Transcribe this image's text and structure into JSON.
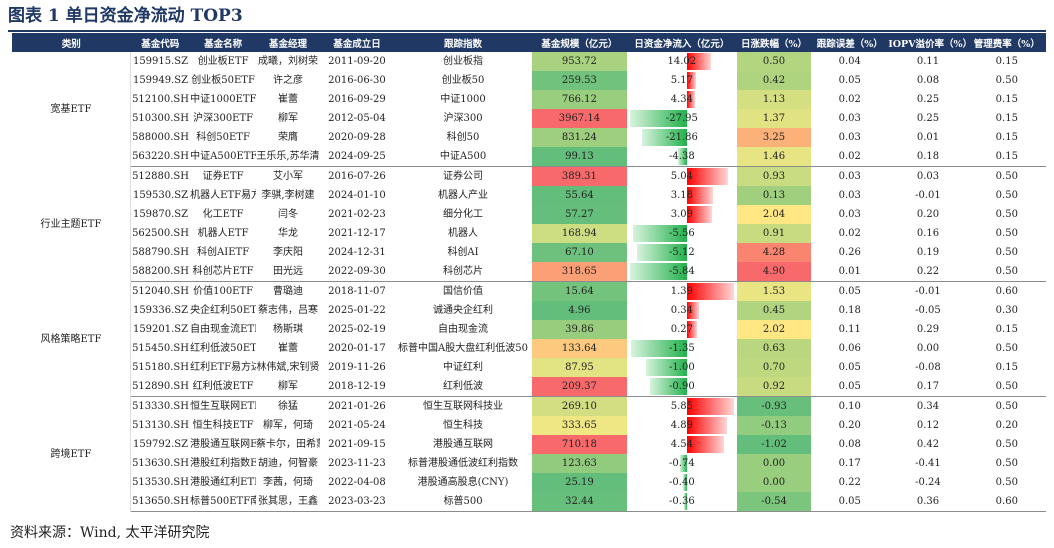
{
  "title": "图表 1  单日资金净流动 TOP3",
  "source": "资料来源：Wind, 太平洋研究院",
  "headers": [
    "类别",
    "基金代码",
    "基金名称",
    "基金经理",
    "基金成立日",
    "跟踪指数",
    "基金规模（亿元）",
    "日资金净流入（亿元）",
    "日涨跌幅（%）",
    "跟踪误差（%）",
    "IOPV溢价率（%）",
    "管理费率（%）"
  ],
  "groups": [
    {
      "category": "宽基ETF",
      "rows": [
        {
          "code": "159915.SZ",
          "name": "创业板ETF",
          "manager": "成曦，刘树荣",
          "date": "2011-09-20",
          "index": "创业板指",
          "scale": "953.72",
          "flow": "14.02",
          "chg": "0.50",
          "te": "0.04",
          "iopv": "0.11",
          "fee": "0.15"
        },
        {
          "code": "159949.SZ",
          "name": "创业板50ETF",
          "manager": "许之彦",
          "date": "2016-06-30",
          "index": "创业板50",
          "scale": "259.53",
          "flow": "5.17",
          "chg": "0.42",
          "te": "0.05",
          "iopv": "0.08",
          "fee": "0.50"
        },
        {
          "code": "512100.SH",
          "name": "中证1000ETF",
          "manager": "崔蕾",
          "date": "2016-09-29",
          "index": "中证1000",
          "scale": "766.12",
          "flow": "4.34",
          "chg": "1.13",
          "te": "0.02",
          "iopv": "0.25",
          "fee": "0.15"
        },
        {
          "code": "510300.SH",
          "name": "沪深300ETF",
          "manager": "柳军",
          "date": "2012-05-04",
          "index": "沪深300",
          "scale": "3967.14",
          "flow": "-27.95",
          "chg": "1.37",
          "te": "0.03",
          "iopv": "0.25",
          "fee": "0.15"
        },
        {
          "code": "588000.SH",
          "name": "科创50ETF",
          "manager": "荣膺",
          "date": "2020-09-28",
          "index": "科创50",
          "scale": "831.24",
          "flow": "-21.86",
          "chg": "3.25",
          "te": "0.03",
          "iopv": "0.01",
          "fee": "0.15"
        },
        {
          "code": "563220.SH",
          "name": "中证A500ETF富国",
          "manager": "王乐乐,苏华清",
          "date": "2024-09-25",
          "index": "中证A500",
          "scale": "99.13",
          "flow": "-4.38",
          "chg": "1.46",
          "te": "0.02",
          "iopv": "0.18",
          "fee": "0.15"
        }
      ]
    },
    {
      "category": "行业主题ETF",
      "rows": [
        {
          "code": "512880.SH",
          "name": "证券ETF",
          "manager": "艾小军",
          "date": "2016-07-26",
          "index": "证券公司",
          "scale": "389.31",
          "flow": "5.04",
          "chg": "0.93",
          "te": "0.03",
          "iopv": "0.03",
          "fee": "0.50"
        },
        {
          "code": "159530.SZ",
          "name": "机器人ETF易方达",
          "manager": "李骐,李树建",
          "date": "2024-01-10",
          "index": "机器人产业",
          "scale": "55.64",
          "flow": "3.18",
          "chg": "0.13",
          "te": "0.03",
          "iopv": "-0.01",
          "fee": "0.50"
        },
        {
          "code": "159870.SZ",
          "name": "化工ETF",
          "manager": "闫冬",
          "date": "2021-02-23",
          "index": "细分化工",
          "scale": "57.27",
          "flow": "3.09",
          "chg": "2.04",
          "te": "0.03",
          "iopv": "0.20",
          "fee": "0.50"
        },
        {
          "code": "562500.SH",
          "name": "机器人ETF",
          "manager": "华龙",
          "date": "2021-12-17",
          "index": "机器人",
          "scale": "168.94",
          "flow": "-5.56",
          "chg": "0.91",
          "te": "0.02",
          "iopv": "0.16",
          "fee": "0.50"
        },
        {
          "code": "588790.SH",
          "name": "科创AIETF",
          "manager": "李庆阳",
          "date": "2024-12-31",
          "index": "科创AI",
          "scale": "67.10",
          "flow": "-5.12",
          "chg": "4.28",
          "te": "0.26",
          "iopv": "0.19",
          "fee": "0.50"
        },
        {
          "code": "588200.SH",
          "name": "科创芯片ETF",
          "manager": "田光远",
          "date": "2022-09-30",
          "index": "科创芯片",
          "scale": "318.65",
          "flow": "-5.84",
          "chg": "4.90",
          "te": "0.01",
          "iopv": "0.22",
          "fee": "0.50"
        }
      ]
    },
    {
      "category": "风格策略ETF",
      "rows": [
        {
          "code": "512040.SH",
          "name": "价值100ETF",
          "manager": "曹璐迪",
          "date": "2018-11-07",
          "index": "国信价值",
          "scale": "15.64",
          "flow": "1.39",
          "chg": "1.53",
          "te": "0.05",
          "iopv": "-0.01",
          "fee": "0.60"
        },
        {
          "code": "159336.SZ",
          "name": "央企红利50ETF",
          "manager": "蔡志伟，吕寒",
          "date": "2025-01-22",
          "index": "诚通央企红利",
          "scale": "4.96",
          "flow": "0.34",
          "chg": "0.45",
          "te": "0.18",
          "iopv": "-0.05",
          "fee": "0.30"
        },
        {
          "code": "159201.SZ",
          "name": "自由现金流ETF",
          "manager": "杨斯琪",
          "date": "2025-02-19",
          "index": "自由现金流",
          "scale": "39.86",
          "flow": "0.27",
          "chg": "2.02",
          "te": "0.11",
          "iopv": "0.29",
          "fee": "0.15"
        },
        {
          "code": "515450.SH",
          "name": "红利低波50ETF",
          "manager": "崔蕾",
          "date": "2020-01-17",
          "index": "标普中国A股大盘红利低波50",
          "scale": "133.64",
          "flow": "-1.35",
          "chg": "0.63",
          "te": "0.06",
          "iopv": "0.00",
          "fee": "0.50"
        },
        {
          "code": "515180.SH",
          "name": "红利ETF易方达",
          "manager": "林伟斌,宋钊贤",
          "date": "2019-11-26",
          "index": "中证红利",
          "scale": "87.95",
          "flow": "-1.00",
          "chg": "0.70",
          "te": "0.05",
          "iopv": "-0.08",
          "fee": "0.15"
        },
        {
          "code": "512890.SH",
          "name": "红利低波ETF",
          "manager": "柳军",
          "date": "2018-12-19",
          "index": "红利低波",
          "scale": "209.37",
          "flow": "-0.90",
          "chg": "0.92",
          "te": "0.05",
          "iopv": "0.17",
          "fee": "0.50"
        }
      ]
    },
    {
      "category": "跨境ETF",
      "rows": [
        {
          "code": "513330.SH",
          "name": "恒生互联网ETF",
          "manager": "徐猛",
          "date": "2021-01-26",
          "index": "恒生互联网科技业",
          "scale": "269.10",
          "flow": "5.85",
          "chg": "-0.93",
          "te": "0.10",
          "iopv": "0.34",
          "fee": "0.50"
        },
        {
          "code": "513130.SH",
          "name": "恒生科技ETF",
          "manager": "柳军，何琦",
          "date": "2021-05-24",
          "index": "恒生科技",
          "scale": "333.65",
          "flow": "4.89",
          "chg": "-0.13",
          "te": "0.20",
          "iopv": "0.12",
          "fee": "0.20"
        },
        {
          "code": "159792.SZ",
          "name": "港股通互联网ETF",
          "manager": "蔡卡尔，田希蒙",
          "date": "2021-09-15",
          "index": "港股通互联网",
          "scale": "710.18",
          "flow": "4.54",
          "chg": "-1.02",
          "te": "0.08",
          "iopv": "0.42",
          "fee": "0.50"
        },
        {
          "code": "513630.SH",
          "name": "港股红利指数ETF",
          "manager": "胡迪，何智豪",
          "date": "2023-11-23",
          "index": "标普港股通低波红利指数",
          "scale": "123.63",
          "flow": "-0.74",
          "chg": "0.00",
          "te": "0.17",
          "iopv": "-0.41",
          "fee": "0.50"
        },
        {
          "code": "513530.SH",
          "name": "港股通红利ETF",
          "manager": "李茜，何琦",
          "date": "2022-04-08",
          "index": "港股通高股息(CNY)",
          "scale": "25.19",
          "flow": "-0.40",
          "chg": "0.00",
          "te": "0.22",
          "iopv": "-0.24",
          "fee": "0.50"
        },
        {
          "code": "513650.SH",
          "name": "标普500ETF南方",
          "manager": "张其思，王鑫",
          "date": "2023-03-23",
          "index": "标普500",
          "scale": "32.44",
          "flow": "-0.36",
          "chg": "-0.54",
          "te": "0.05",
          "iopv": "0.36",
          "fee": "0.60"
        }
      ]
    }
  ],
  "colors": {
    "header_bg": "#1f3864",
    "title": "#1f3864",
    "flow_pos": "#ff0000",
    "flow_neg": "#22b14c"
  }
}
